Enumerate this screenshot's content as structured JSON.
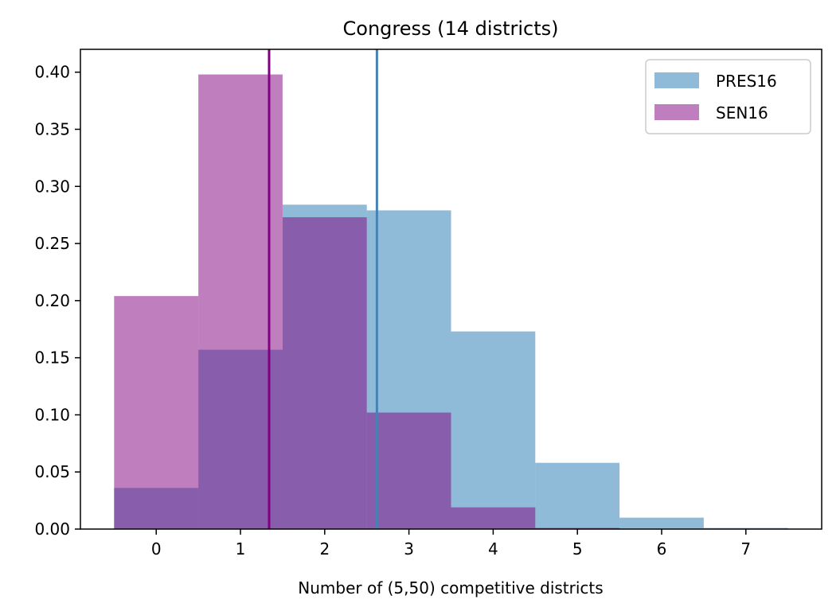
{
  "chart_data": {
    "type": "bar",
    "title": "Congress (14 districts)",
    "xlabel": "Number of (5,50) competitive districts",
    "ylabel": "",
    "xlim": [
      -0.9,
      7.9
    ],
    "ylim": [
      0,
      0.42
    ],
    "xticks": [
      0,
      1,
      2,
      3,
      4,
      5,
      6,
      7
    ],
    "yticks": [
      0.0,
      0.05,
      0.1,
      0.15,
      0.2,
      0.25,
      0.3,
      0.35,
      0.4
    ],
    "ytick_labels": [
      "0.00",
      "0.05",
      "0.10",
      "0.15",
      "0.20",
      "0.25",
      "0.30",
      "0.35",
      "0.40"
    ],
    "bins": [
      0,
      1,
      2,
      3,
      4,
      5,
      6,
      7
    ],
    "grid": false,
    "legend_position": "top-right",
    "series": [
      {
        "name": "PRES16",
        "color": "#1f77b4",
        "opacity": 0.5,
        "values": [
          0.036,
          0.157,
          0.284,
          0.279,
          0.173,
          0.058,
          0.01,
          0.001
        ],
        "mean": 2.62,
        "mean_color": "#4682b4"
      },
      {
        "name": "SEN16",
        "color": "#800080",
        "opacity": 0.5,
        "values": [
          0.204,
          0.398,
          0.273,
          0.102,
          0.019,
          0.001,
          0,
          0
        ],
        "mean": 1.34,
        "mean_color": "#800080"
      }
    ]
  }
}
